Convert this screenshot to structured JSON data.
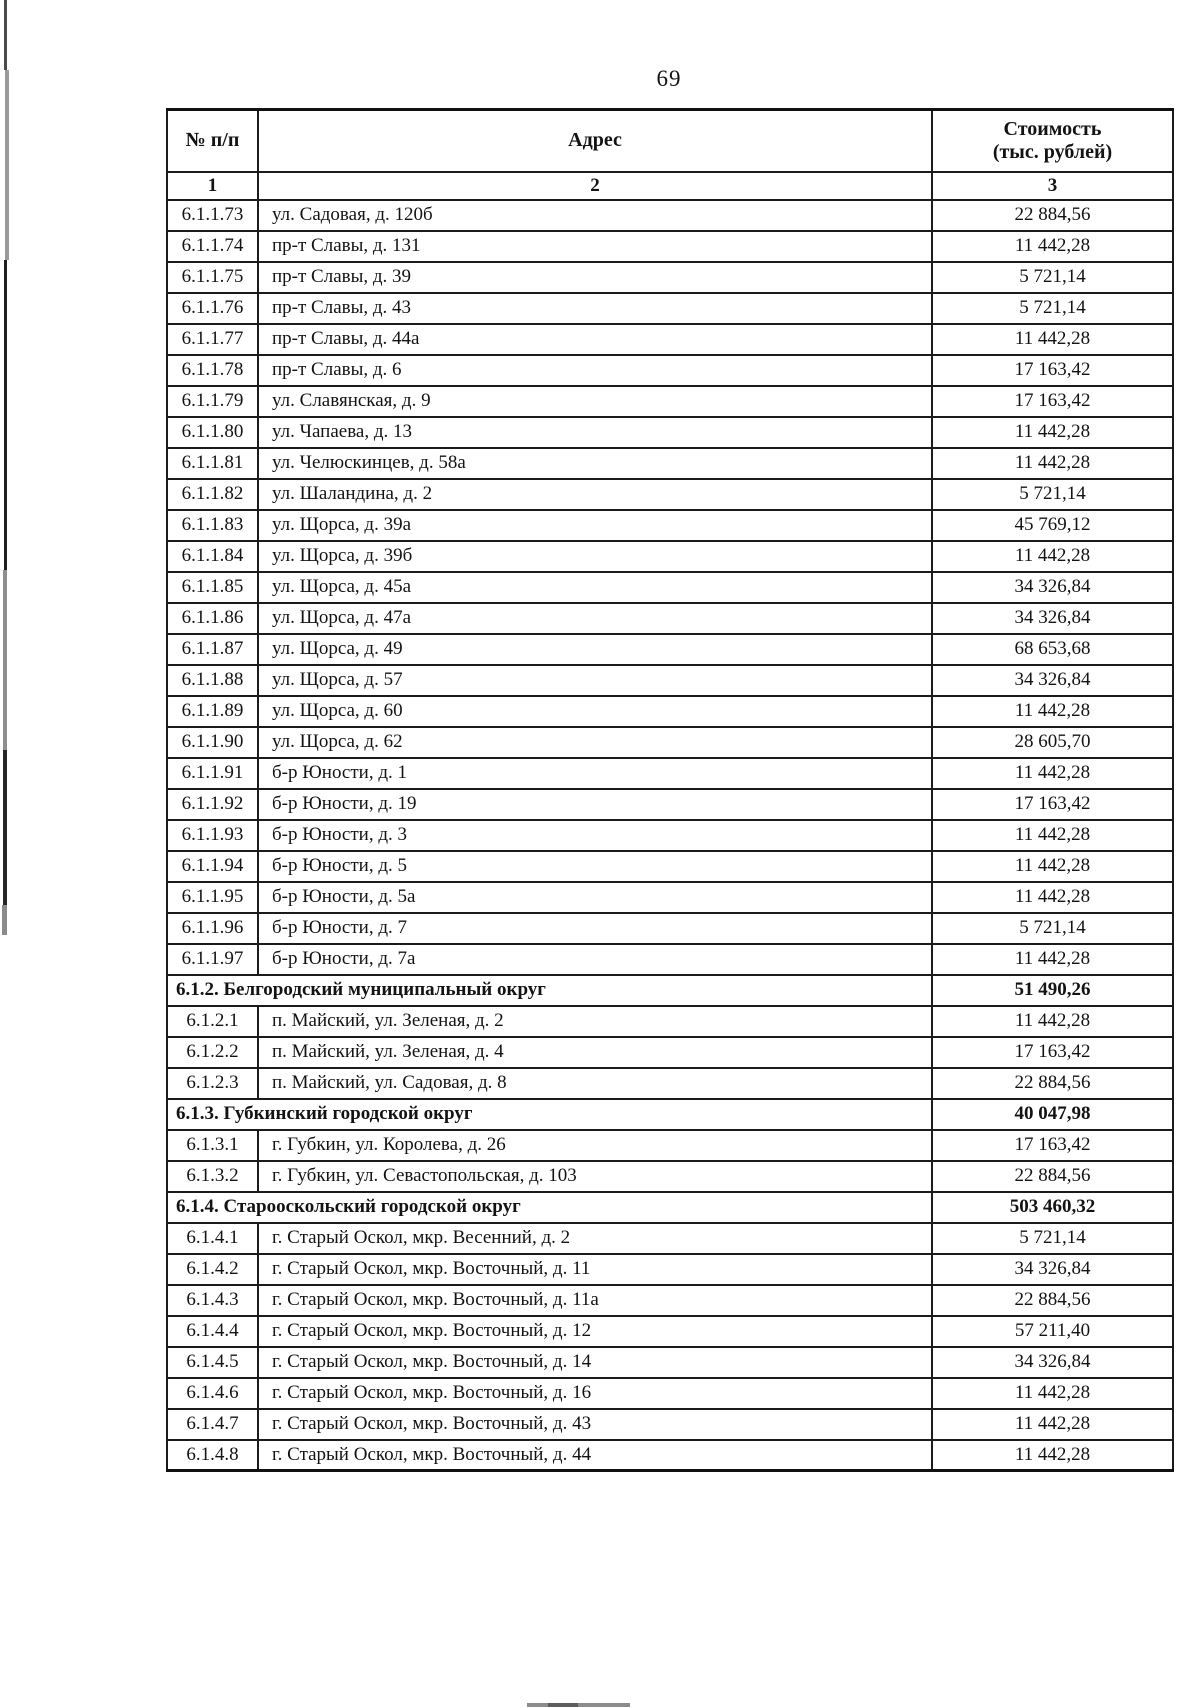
{
  "page": {
    "number": "69"
  },
  "table": {
    "header": {
      "col1": "№ п/п",
      "col2": "Адрес",
      "col3_line1": "Стоимость",
      "col3_line2": "(тыс. рублей)",
      "sub1": "1",
      "sub2": "2",
      "sub3": "3"
    },
    "rows": [
      {
        "type": "item",
        "num": "6.1.1.73",
        "address": "ул. Садовая, д. 120б",
        "cost": "22 884,56"
      },
      {
        "type": "item",
        "num": "6.1.1.74",
        "address": "пр-т Славы, д. 131",
        "cost": "11 442,28"
      },
      {
        "type": "item",
        "num": "6.1.1.75",
        "address": "пр-т Славы, д. 39",
        "cost": "5 721,14"
      },
      {
        "type": "item",
        "num": "6.1.1.76",
        "address": "пр-т Славы, д. 43",
        "cost": "5 721,14"
      },
      {
        "type": "item",
        "num": "6.1.1.77",
        "address": "пр-т Славы, д. 44а",
        "cost": "11 442,28"
      },
      {
        "type": "item",
        "num": "6.1.1.78",
        "address": "пр-т Славы, д. 6",
        "cost": "17 163,42"
      },
      {
        "type": "item",
        "num": "6.1.1.79",
        "address": "ул. Славянская, д. 9",
        "cost": "17 163,42"
      },
      {
        "type": "item",
        "num": "6.1.1.80",
        "address": "ул. Чапаева, д. 13",
        "cost": "11 442,28"
      },
      {
        "type": "item",
        "num": "6.1.1.81",
        "address": "ул. Челюскинцев, д. 58а",
        "cost": "11 442,28"
      },
      {
        "type": "item",
        "num": "6.1.1.82",
        "address": "ул. Шаландина, д. 2",
        "cost": "5 721,14"
      },
      {
        "type": "item",
        "num": "6.1.1.83",
        "address": "ул. Щорса, д. 39а",
        "cost": "45 769,12"
      },
      {
        "type": "item",
        "num": "6.1.1.84",
        "address": "ул. Щорса, д. 39б",
        "cost": "11 442,28"
      },
      {
        "type": "item",
        "num": "6.1.1.85",
        "address": "ул. Щорса, д. 45а",
        "cost": "34 326,84"
      },
      {
        "type": "item",
        "num": "6.1.1.86",
        "address": "ул. Щорса, д. 47а",
        "cost": "34 326,84"
      },
      {
        "type": "item",
        "num": "6.1.1.87",
        "address": "ул. Щорса, д. 49",
        "cost": "68 653,68"
      },
      {
        "type": "item",
        "num": "6.1.1.88",
        "address": "ул. Щорса, д. 57",
        "cost": "34 326,84"
      },
      {
        "type": "item",
        "num": "6.1.1.89",
        "address": "ул. Щорса, д. 60",
        "cost": "11 442,28"
      },
      {
        "type": "item",
        "num": "6.1.1.90",
        "address": "ул. Щорса, д. 62",
        "cost": "28 605,70"
      },
      {
        "type": "item",
        "num": "6.1.1.91",
        "address": "б-р Юности, д. 1",
        "cost": "11 442,28"
      },
      {
        "type": "item",
        "num": "6.1.1.92",
        "address": "б-р Юности, д. 19",
        "cost": "17 163,42"
      },
      {
        "type": "item",
        "num": "6.1.1.93",
        "address": "б-р Юности, д. 3",
        "cost": "11 442,28"
      },
      {
        "type": "item",
        "num": "6.1.1.94",
        "address": "б-р Юности, д. 5",
        "cost": "11 442,28"
      },
      {
        "type": "item",
        "num": "6.1.1.95",
        "address": "б-р Юности, д. 5а",
        "cost": "11 442,28"
      },
      {
        "type": "item",
        "num": "6.1.1.96",
        "address": "б-р Юности, д. 7",
        "cost": "5 721,14"
      },
      {
        "type": "item",
        "num": "6.1.1.97",
        "address": "б-р Юности, д. 7а",
        "cost": "11 442,28"
      },
      {
        "type": "section",
        "label": "6.1.2. Белгородский муниципальный округ",
        "cost": "51 490,26"
      },
      {
        "type": "item",
        "num": "6.1.2.1",
        "address": "п. Майский, ул. Зеленая, д. 2",
        "cost": "11 442,28"
      },
      {
        "type": "item",
        "num": "6.1.2.2",
        "address": "п. Майский, ул. Зеленая, д. 4",
        "cost": "17 163,42"
      },
      {
        "type": "item",
        "num": "6.1.2.3",
        "address": "п. Майский, ул. Садовая, д. 8",
        "cost": "22 884,56"
      },
      {
        "type": "section",
        "label": "6.1.3. Губкинский городской округ",
        "cost": "40 047,98"
      },
      {
        "type": "item",
        "num": "6.1.3.1",
        "address": "г. Губкин, ул. Королева, д. 26",
        "cost": "17 163,42"
      },
      {
        "type": "item",
        "num": "6.1.3.2",
        "address": "г. Губкин, ул. Севастопольская, д. 103",
        "cost": "22 884,56"
      },
      {
        "type": "section",
        "label": "6.1.4. Старооскольский городской округ",
        "cost": "503 460,32"
      },
      {
        "type": "item",
        "num": "6.1.4.1",
        "address": "г. Старый Оскол, мкр. Весенний, д. 2",
        "cost": "5 721,14"
      },
      {
        "type": "item",
        "num": "6.1.4.2",
        "address": "г. Старый Оскол, мкр. Восточный, д. 11",
        "cost": "34 326,84"
      },
      {
        "type": "item",
        "num": "6.1.4.3",
        "address": "г. Старый Оскол, мкр. Восточный, д. 11а",
        "cost": "22 884,56"
      },
      {
        "type": "item",
        "num": "6.1.4.4",
        "address": "г. Старый Оскол, мкр. Восточный, д. 12",
        "cost": "57 211,40"
      },
      {
        "type": "item",
        "num": "6.1.4.5",
        "address": "г. Старый Оскол, мкр. Восточный, д. 14",
        "cost": "34 326,84"
      },
      {
        "type": "item",
        "num": "6.1.4.6",
        "address": "г. Старый Оскол, мкр. Восточный, д. 16",
        "cost": "11 442,28"
      },
      {
        "type": "item",
        "num": "6.1.4.7",
        "address": "г. Старый Оскол, мкр. Восточный, д. 43",
        "cost": "11 442,28"
      },
      {
        "type": "item",
        "num": "6.1.4.8",
        "address": "г. Старый Оскол, мкр. Восточный, д. 44",
        "cost": "11 442,28"
      }
    ]
  }
}
